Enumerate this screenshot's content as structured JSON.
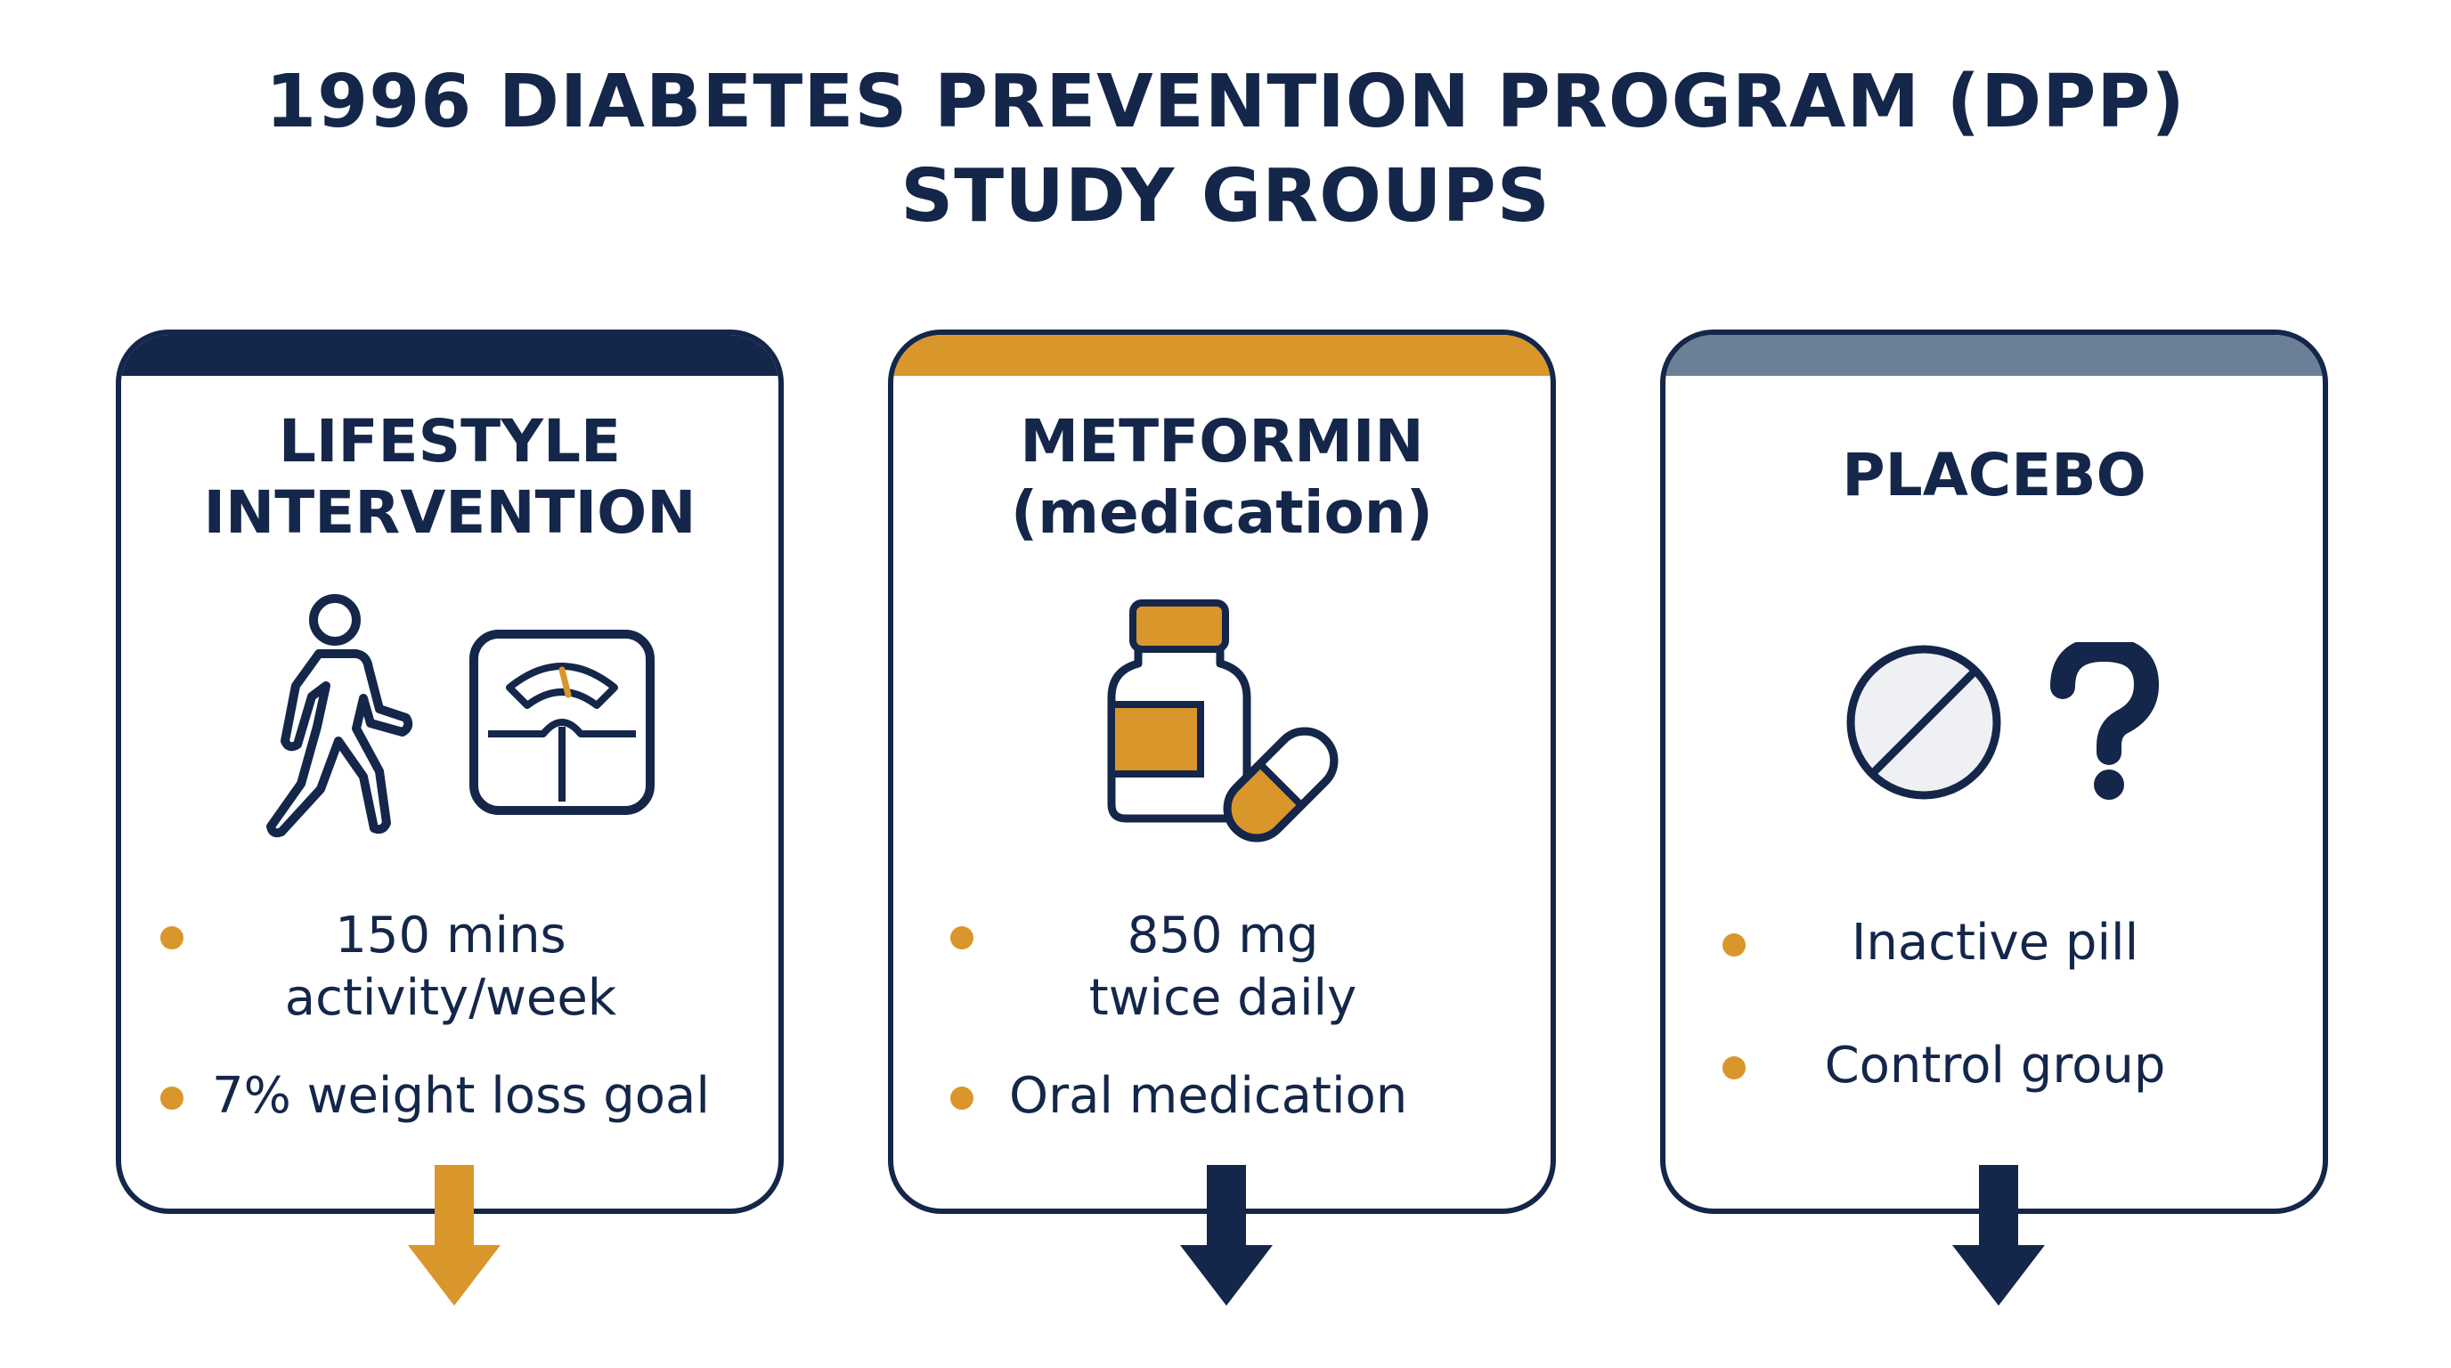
{
  "title": {
    "line1": "1996 DIABETES PREVENTION PROGRAM (DPP)",
    "line2": "STUDY GROUPS"
  },
  "colors": {
    "navy": "#14264a",
    "gold": "#d9962a",
    "slate": "#6b7f96"
  },
  "groups": [
    {
      "title_line1": "LIFESTYLE",
      "title_line2": "INTERVENTION",
      "icons": [
        "walking-person-icon",
        "scale-icon"
      ],
      "bullets": [
        {
          "line1": "150 mins",
          "line2": "activity/week"
        },
        {
          "line1": "7% weight loss goal"
        }
      ],
      "header_color": "#14264a",
      "arrow_color": "#d9962a"
    },
    {
      "title_line1": "METFORMIN",
      "title_line2": "(medication)",
      "icons": [
        "pill-bottle-icon",
        "capsule-icon"
      ],
      "bullets": [
        {
          "line1": "850 mg",
          "line2": "twice daily"
        },
        {
          "line1": "Oral medication"
        }
      ],
      "header_color": "#d9962a",
      "arrow_color": "#14264a"
    },
    {
      "title_line1": "PLACEBO",
      "icons": [
        "placebo-pill-icon",
        "question-mark-icon"
      ],
      "bullets": [
        {
          "line1": "Inactive pill"
        },
        {
          "line1": "Control group"
        }
      ],
      "header_color": "#6b7f96",
      "arrow_color": "#14264a"
    }
  ]
}
